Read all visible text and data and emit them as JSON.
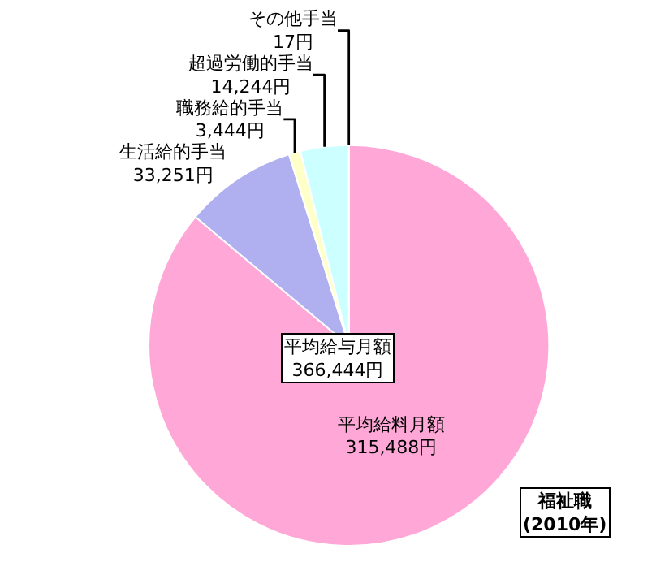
{
  "chart_data": {
    "type": "pie",
    "categories": [
      "平均給料月額",
      "生活給的手当",
      "職務給的手当",
      "超過労働的手当",
      "その他手当"
    ],
    "values": [
      315488,
      33251,
      3444,
      14244,
      17
    ],
    "value_labels": [
      "315,488円",
      "33,251円",
      "3,444円",
      "14,244円",
      "17円"
    ],
    "colors": [
      "#ffa8d8",
      "#b0b0f0",
      "#ffffc8",
      "#ccffff",
      "#ffe8f0"
    ],
    "annotations": [
      "平均給与月額\n366,444円",
      "福祉職\n(2010年)"
    ],
    "legend": false
  }
}
